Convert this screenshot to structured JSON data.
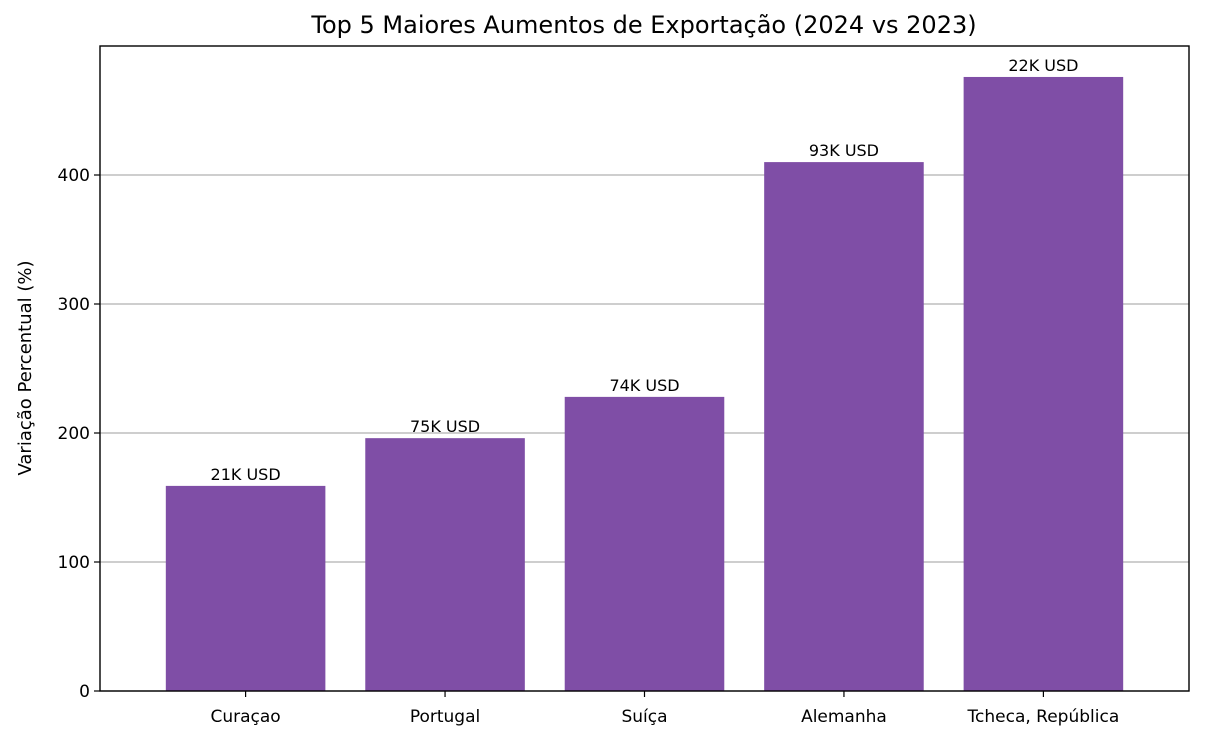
{
  "chart_data": {
    "type": "bar",
    "title": "Top 5 Maiores Aumentos de Exportação (2024 vs 2023)",
    "xlabel": "",
    "ylabel": "Variação Percentual (%)",
    "categories": [
      "Curaçao",
      "Portugal",
      "Suíça",
      "Alemanha",
      "Tcheca, República"
    ],
    "values": [
      159,
      196,
      228,
      410,
      476
    ],
    "bar_labels": [
      "21K USD",
      "75K USD",
      "74K USD",
      "93K USD",
      "22K USD"
    ],
    "ylim": [
      0,
      500
    ],
    "yticks": [
      0,
      100,
      200,
      300,
      400
    ],
    "grid": "y",
    "bar_color": "#7f4ea6",
    "grid_color": "#b0b0b0"
  }
}
